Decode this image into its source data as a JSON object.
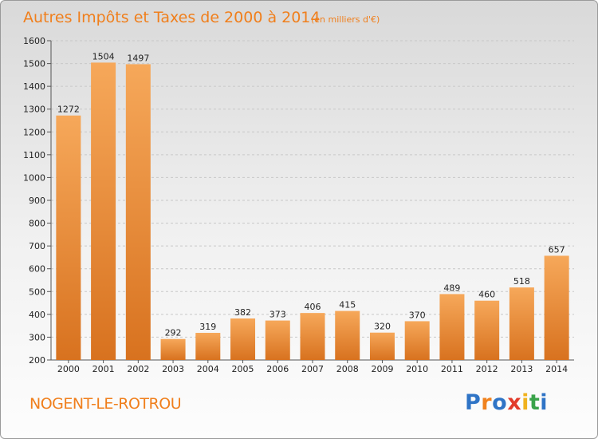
{
  "header": {
    "title": "Autres Impôts et Taxes de 2000 à 2014",
    "unit": "(en milliers d'€)"
  },
  "footer": {
    "town": "NOGENT-LE-ROTROU",
    "brand_letters": [
      {
        "ch": "P",
        "color": "#2f74c6"
      },
      {
        "ch": "r",
        "color": "#f0821e"
      },
      {
        "ch": "o",
        "color": "#2f74c6"
      },
      {
        "ch": "x",
        "color": "#e23b2a"
      },
      {
        "ch": "i",
        "color": "#f0b21e"
      },
      {
        "ch": "t",
        "color": "#3aa34a"
      },
      {
        "ch": "i",
        "color": "#2f74c6"
      }
    ]
  },
  "colors": {
    "bar_light": "#f6a85a",
    "bar_dark": "#d8721f",
    "accent": "#f07f1c"
  },
  "chart_data": {
    "type": "bar",
    "title": "Autres Impôts et Taxes de 2000 à 2014",
    "subtitle": "(en milliers d'€)",
    "categories": [
      "2000",
      "2001",
      "2002",
      "2003",
      "2004",
      "2005",
      "2006",
      "2007",
      "2008",
      "2009",
      "2010",
      "2011",
      "2012",
      "2013",
      "2014"
    ],
    "values": [
      1272,
      1504,
      1497,
      292,
      319,
      382,
      373,
      406,
      415,
      320,
      370,
      489,
      460,
      518,
      657
    ],
    "ylim": [
      200,
      1600
    ],
    "yticks": [
      200,
      300,
      400,
      500,
      600,
      700,
      800,
      900,
      1000,
      1100,
      1200,
      1300,
      1400,
      1500,
      1600
    ],
    "grid": true,
    "legend": "none"
  }
}
